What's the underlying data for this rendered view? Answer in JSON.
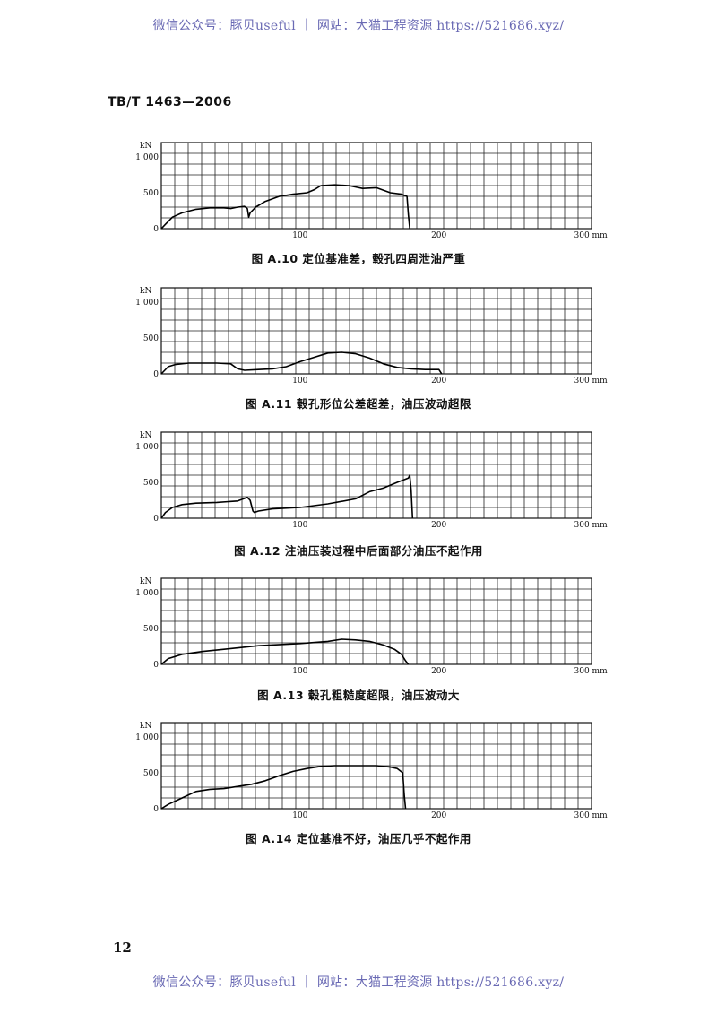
{
  "watermark": {
    "top": "微信公众号：豚贝useful ｜ 网站：大猫工程资源 https://521686.xyz/",
    "bottom": "微信公众号：豚贝useful ｜ 网站：大猫工程资源 https://521686.xyz/"
  },
  "header": {
    "standard_code": "TB/T 1463—2006"
  },
  "page_number": "12",
  "chart_data": [
    {
      "type": "line",
      "caption": "图 A.10   定位基准差，毂孔四周泄油严重",
      "y_unit": "kN",
      "yticks": [
        "0",
        "500",
        "1 000"
      ],
      "xticks": [
        "100",
        "200",
        "300 mm"
      ],
      "xlim": [
        0,
        310
      ],
      "ylim": [
        0,
        1000
      ],
      "x": [
        0,
        3,
        8,
        15,
        25,
        35,
        45,
        50,
        55,
        60,
        62,
        63,
        64,
        68,
        75,
        85,
        95,
        105,
        110,
        115,
        125,
        135,
        140,
        145,
        155,
        165,
        173,
        177,
        178,
        179
      ],
      "y": [
        0,
        60,
        160,
        220,
        270,
        290,
        290,
        280,
        300,
        310,
        280,
        160,
        220,
        300,
        380,
        450,
        480,
        500,
        540,
        600,
        610,
        600,
        580,
        560,
        570,
        500,
        480,
        450,
        200,
        0
      ]
    },
    {
      "type": "line",
      "caption": "图 A.11   毂孔形位公差超差，油压波动超限",
      "y_unit": "kN",
      "yticks": [
        "0",
        "500",
        "1 000"
      ],
      "xticks": [
        "100",
        "200",
        "300 mm"
      ],
      "xlim": [
        0,
        310
      ],
      "ylim": [
        0,
        1000
      ],
      "x": [
        0,
        5,
        10,
        20,
        40,
        50,
        55,
        60,
        70,
        80,
        90,
        100,
        110,
        120,
        130,
        140,
        150,
        160,
        170,
        180,
        190,
        200,
        202
      ],
      "y": [
        0,
        100,
        130,
        150,
        150,
        140,
        70,
        50,
        60,
        70,
        100,
        170,
        230,
        290,
        300,
        280,
        220,
        140,
        90,
        70,
        60,
        60,
        0
      ]
    },
    {
      "type": "line",
      "caption": "图 A.12   注油压装过程中后面部分油压不起作用",
      "y_unit": "kN",
      "yticks": [
        "0",
        "500",
        "1 000"
      ],
      "xticks": [
        "100",
        "200",
        "300 mm"
      ],
      "xlim": [
        0,
        310
      ],
      "ylim": [
        0,
        1000
      ],
      "x": [
        0,
        3,
        8,
        15,
        25,
        40,
        55,
        62,
        64,
        66,
        67,
        70,
        80,
        100,
        120,
        140,
        150,
        160,
        170,
        178,
        179,
        180,
        181
      ],
      "y": [
        0,
        80,
        150,
        190,
        210,
        220,
        240,
        290,
        250,
        100,
        80,
        100,
        130,
        150,
        200,
        270,
        370,
        420,
        500,
        560,
        600,
        400,
        0
      ]
    },
    {
      "type": "line",
      "caption": "图 A.13   毂孔粗糙度超限，油压波动大",
      "y_unit": "kN",
      "yticks": [
        "0",
        "500",
        "1 000"
      ],
      "xticks": [
        "100",
        "200",
        "300 mm"
      ],
      "xlim": [
        0,
        310
      ],
      "ylim": [
        0,
        1000
      ],
      "x": [
        0,
        5,
        15,
        30,
        50,
        70,
        90,
        100,
        120,
        130,
        140,
        150,
        160,
        168,
        173,
        176,
        178
      ],
      "y": [
        0,
        80,
        140,
        180,
        220,
        260,
        280,
        290,
        320,
        350,
        340,
        320,
        270,
        210,
        140,
        50,
        0
      ]
    },
    {
      "type": "line",
      "caption": "图 A.14   定位基准不好，油压几乎不起作用",
      "y_unit": "kN",
      "yticks": [
        "0",
        "500",
        "1 000"
      ],
      "xticks": [
        "100",
        "200",
        "300 mm"
      ],
      "xlim": [
        0,
        310
      ],
      "ylim": [
        0,
        1000
      ],
      "x": [
        0,
        5,
        15,
        25,
        35,
        45,
        55,
        65,
        75,
        85,
        95,
        105,
        115,
        125,
        135,
        145,
        155,
        165,
        170,
        174,
        175,
        176
      ],
      "y": [
        0,
        60,
        150,
        240,
        270,
        280,
        310,
        340,
        390,
        460,
        520,
        560,
        590,
        600,
        600,
        600,
        600,
        580,
        560,
        500,
        200,
        0
      ]
    }
  ]
}
